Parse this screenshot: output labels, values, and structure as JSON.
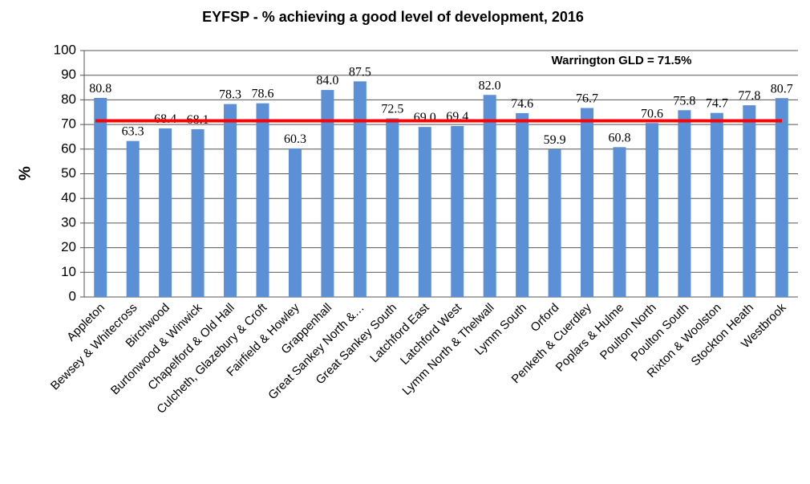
{
  "chart_data": {
    "type": "bar",
    "title": "EYFSP - % achieving a good level of development, 2016",
    "y_label": "%",
    "categories": [
      "Appleton",
      "Bewsey & Whitecross",
      "Birchwood",
      "Burtonwood & Winwick",
      "Chapelford & Old Hall",
      "Culcheth, Glazebury & Croft",
      "Fairfield & Howley",
      "Grappenhall",
      "Great Sankey North &…",
      "Great Sankey South",
      "Latchford East",
      "Latchford West",
      "Lymm North & Thelwall",
      "Lymm South",
      "Orford",
      "Penketh & Cuerdley",
      "Poplars & Hulme",
      "Poulton North",
      "Poulton South",
      "Rixton & Woolston",
      "Stockton Heath",
      "Westbrook"
    ],
    "values": [
      80.8,
      63.3,
      68.4,
      68.1,
      78.3,
      78.6,
      60.3,
      84.0,
      87.5,
      72.5,
      69.0,
      69.4,
      82.0,
      74.6,
      59.9,
      76.7,
      60.8,
      70.6,
      75.8,
      74.7,
      77.8,
      80.7
    ],
    "value_labels": [
      "80.8",
      "63.3",
      "68.4",
      "68.1",
      "78.3",
      "78.6",
      "60.3",
      "84.0",
      "87.5",
      "72.5",
      "69.0",
      "69.4",
      "82.0",
      "74.6",
      "59.9",
      "76.7",
      "60.8",
      "70.6",
      "75.8",
      "74.7",
      "77.8",
      "80.7"
    ],
    "color": "#5b8fd6",
    "ylim": [
      0,
      100
    ],
    "yticks": [
      0,
      10,
      20,
      30,
      40,
      50,
      60,
      70,
      80,
      90,
      100
    ],
    "grid": true,
    "reference_line": {
      "value": 71.5,
      "color": "#ff0000",
      "label": "Warrington GLD = 71.5%"
    }
  }
}
